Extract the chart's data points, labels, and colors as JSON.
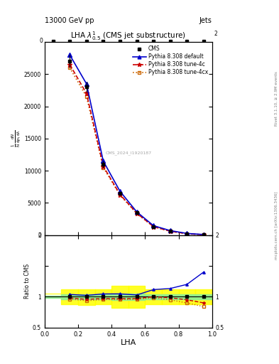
{
  "title": "LHA $\\lambda^{1}_{0.5}$ (CMS jet substructure)",
  "header_left": "13000 GeV pp",
  "header_right": "Jets",
  "xlabel": "LHA",
  "ylabel_ratio": "Ratio to CMS",
  "watermark": "CMS_2024_I1920187",
  "right_label_top": "Rivet 3.1.10, ≥ 2.9M events",
  "right_label_bottom": "mcplots.cern.ch [arXiv:1306.3436]",
  "lha_bins": [
    0.0,
    0.1,
    0.2,
    0.3,
    0.4,
    0.5,
    0.6,
    0.7,
    0.8,
    0.9,
    1.0
  ],
  "lha_centers": [
    0.05,
    0.15,
    0.25,
    0.35,
    0.45,
    0.55,
    0.65,
    0.75,
    0.85,
    0.95
  ],
  "cms_values": [
    0,
    27000,
    23000,
    11000,
    6500,
    3500,
    1300,
    600,
    200,
    50
  ],
  "cms_errors": [
    0,
    1000,
    800,
    500,
    300,
    200,
    100,
    50,
    30,
    10
  ],
  "pythia_default_values": [
    0,
    28000,
    23500,
    11500,
    6800,
    3600,
    1450,
    680,
    240,
    70
  ],
  "pythia_4c_values": [
    0,
    26500,
    22000,
    10700,
    6300,
    3400,
    1300,
    590,
    190,
    45
  ],
  "pythia_4cx_values": [
    0,
    26000,
    21500,
    10500,
    6200,
    3350,
    1280,
    570,
    180,
    42
  ],
  "band_yellow_lo": [
    1.05,
    0.88,
    0.87,
    0.88,
    0.82,
    0.82,
    0.88,
    0.88,
    0.88,
    0.88
  ],
  "band_yellow_hi": [
    1.05,
    1.12,
    1.12,
    1.12,
    1.18,
    1.18,
    1.12,
    1.12,
    1.12,
    1.12
  ],
  "band_green_lo": [
    0.98,
    0.96,
    0.96,
    0.96,
    0.95,
    0.95,
    0.96,
    0.96,
    0.96,
    0.96
  ],
  "band_green_hi": [
    1.02,
    1.04,
    1.04,
    1.04,
    1.05,
    1.05,
    1.04,
    1.04,
    1.04,
    1.04
  ],
  "ylim_main": [
    0,
    30000
  ],
  "yticks_main": [
    0,
    5000,
    10000,
    15000,
    20000,
    25000
  ],
  "ylim_ratio": [
    0.5,
    2.0
  ],
  "xlim": [
    0,
    1.0
  ],
  "color_cms": "#000000",
  "color_default": "#0000cc",
  "color_4c": "#cc0000",
  "color_4cx": "#cc6600",
  "legend_entries": [
    "CMS",
    "Pythia 8.308 default",
    "Pythia 8.308 tune-4c",
    "Pythia 8.308 tune-4cx"
  ]
}
